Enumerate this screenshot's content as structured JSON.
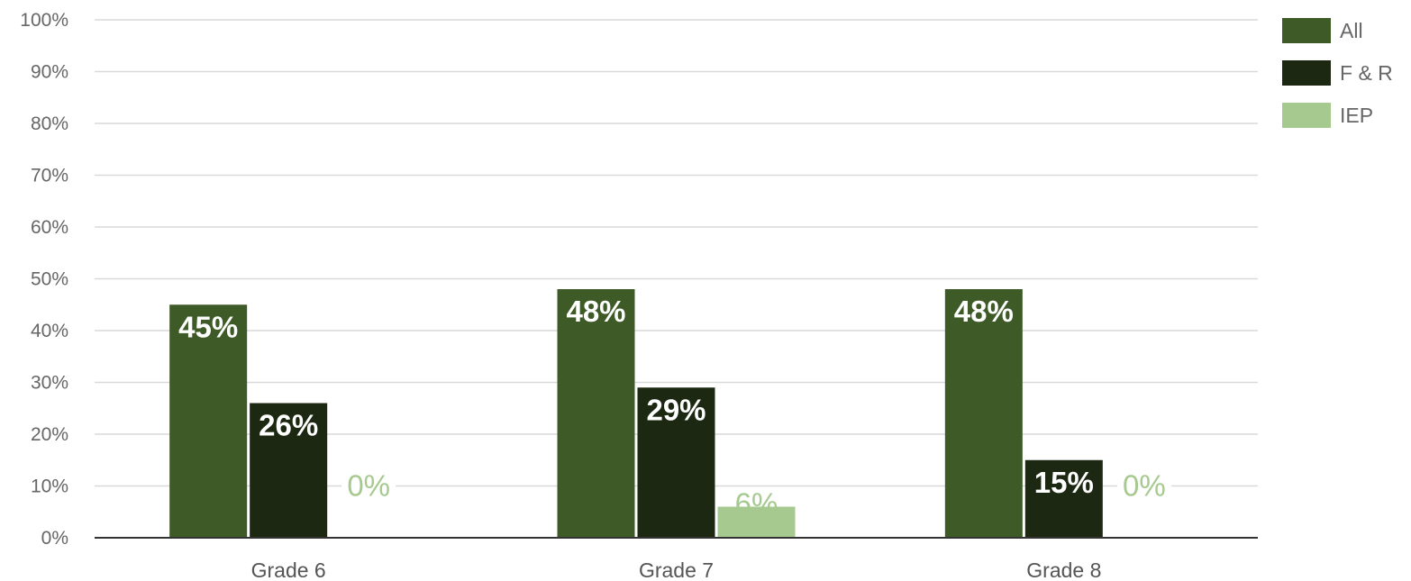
{
  "chart_data": {
    "type": "bar",
    "categories": [
      "Grade 6",
      "Grade 7",
      "Grade 8"
    ],
    "series": [
      {
        "name": "All",
        "color": "#3d5a27",
        "values": [
          45,
          48,
          48
        ],
        "labels": [
          "45%",
          "48%",
          "48%"
        ]
      },
      {
        "name": "F & R",
        "color": "#1c2812",
        "values": [
          26,
          29,
          15
        ],
        "labels": [
          "26%",
          "29%",
          "15%"
        ]
      },
      {
        "name": "IEP",
        "color": "#a6c98f",
        "values": [
          0,
          6,
          0
        ],
        "labels": [
          "0%",
          "6%",
          "0%"
        ]
      }
    ],
    "y_ticks": [
      "0%",
      "10%",
      "20%",
      "30%",
      "40%",
      "50%",
      "60%",
      "70%",
      "80%",
      "90%",
      "100%"
    ],
    "ylim": [
      0,
      100
    ],
    "grid": true,
    "legend_position": "top-right"
  }
}
